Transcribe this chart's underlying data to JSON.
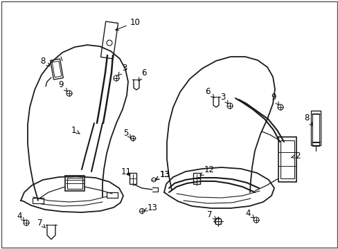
{
  "background_color": "#ffffff",
  "fig_width": 4.89,
  "fig_height": 3.6,
  "dpi": 100,
  "line_color": "#1a1a1a",
  "label_fontsize": 8.5,
  "label_color": "#000000"
}
